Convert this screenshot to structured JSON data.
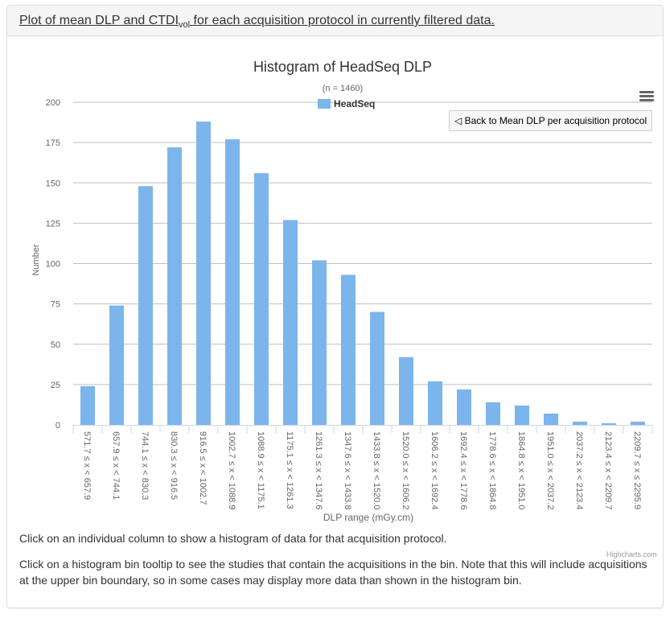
{
  "panel": {
    "heading_pre": "Plot of mean DLP and CTDI",
    "heading_sub": "vol",
    "heading_post": " for each acquisition protocol in currently filtered data."
  },
  "chart_toolbar": {
    "menu_icon": "hamburger-menu-icon",
    "back_button": "◁ Back to Mean DLP per acquisition protocol"
  },
  "chart_data": {
    "type": "bar",
    "title": "Histogram of HeadSeq DLP",
    "subtitle": "(n = 1460)",
    "xlabel": "DLP range (mGy.cm)",
    "ylabel": "Number",
    "ylim": [
      0,
      200
    ],
    "yticks": [
      0,
      25,
      50,
      75,
      100,
      125,
      150,
      175,
      200
    ],
    "grid": true,
    "legend": {
      "position": "top-center",
      "entries": [
        "HeadSeq"
      ]
    },
    "color": "#7cb5ec",
    "categories": [
      "571.7 ≤ x < 657.9",
      "657.9 ≤ x < 744.1",
      "744.1 ≤ x < 830.3",
      "830.3 ≤ x < 916.5",
      "916.5 ≤ x < 1002.7",
      "1002.7 ≤ x < 1088.9",
      "1088.9 ≤ x < 1175.1",
      "1175.1 ≤ x < 1261.3",
      "1261.3 ≤ x < 1347.6",
      "1347.6 ≤ x < 1433.8",
      "1433.8 ≤ x < 1520.0",
      "1520.0 ≤ x < 1606.2",
      "1606.2 ≤ x < 1692.4",
      "1692.4 ≤ x < 1778.6",
      "1778.6 ≤ x < 1864.8",
      "1864.8 ≤ x < 1951.0",
      "1951.0 ≤ x < 2037.2",
      "2037.2 ≤ x < 2123.4",
      "2123.4 ≤ x < 2209.7",
      "2209.7 ≤ x ≤ 2295.9"
    ],
    "series": [
      {
        "name": "HeadSeq",
        "values": [
          24,
          74,
          148,
          172,
          188,
          177,
          156,
          127,
          102,
          93,
          70,
          42,
          27,
          22,
          14,
          12,
          7,
          2,
          1,
          2
        ]
      }
    ]
  },
  "credits": "Highcharts.com",
  "descriptions": [
    "Click on an individual column to show a histogram of data for that acquisition protocol.",
    "Click on a histogram bin tooltip to see the studies that contain the acquisitions in the bin. Note that this will include acquisitions at the upper bin boundary, so in some cases may display more data than shown in the histogram bin."
  ]
}
